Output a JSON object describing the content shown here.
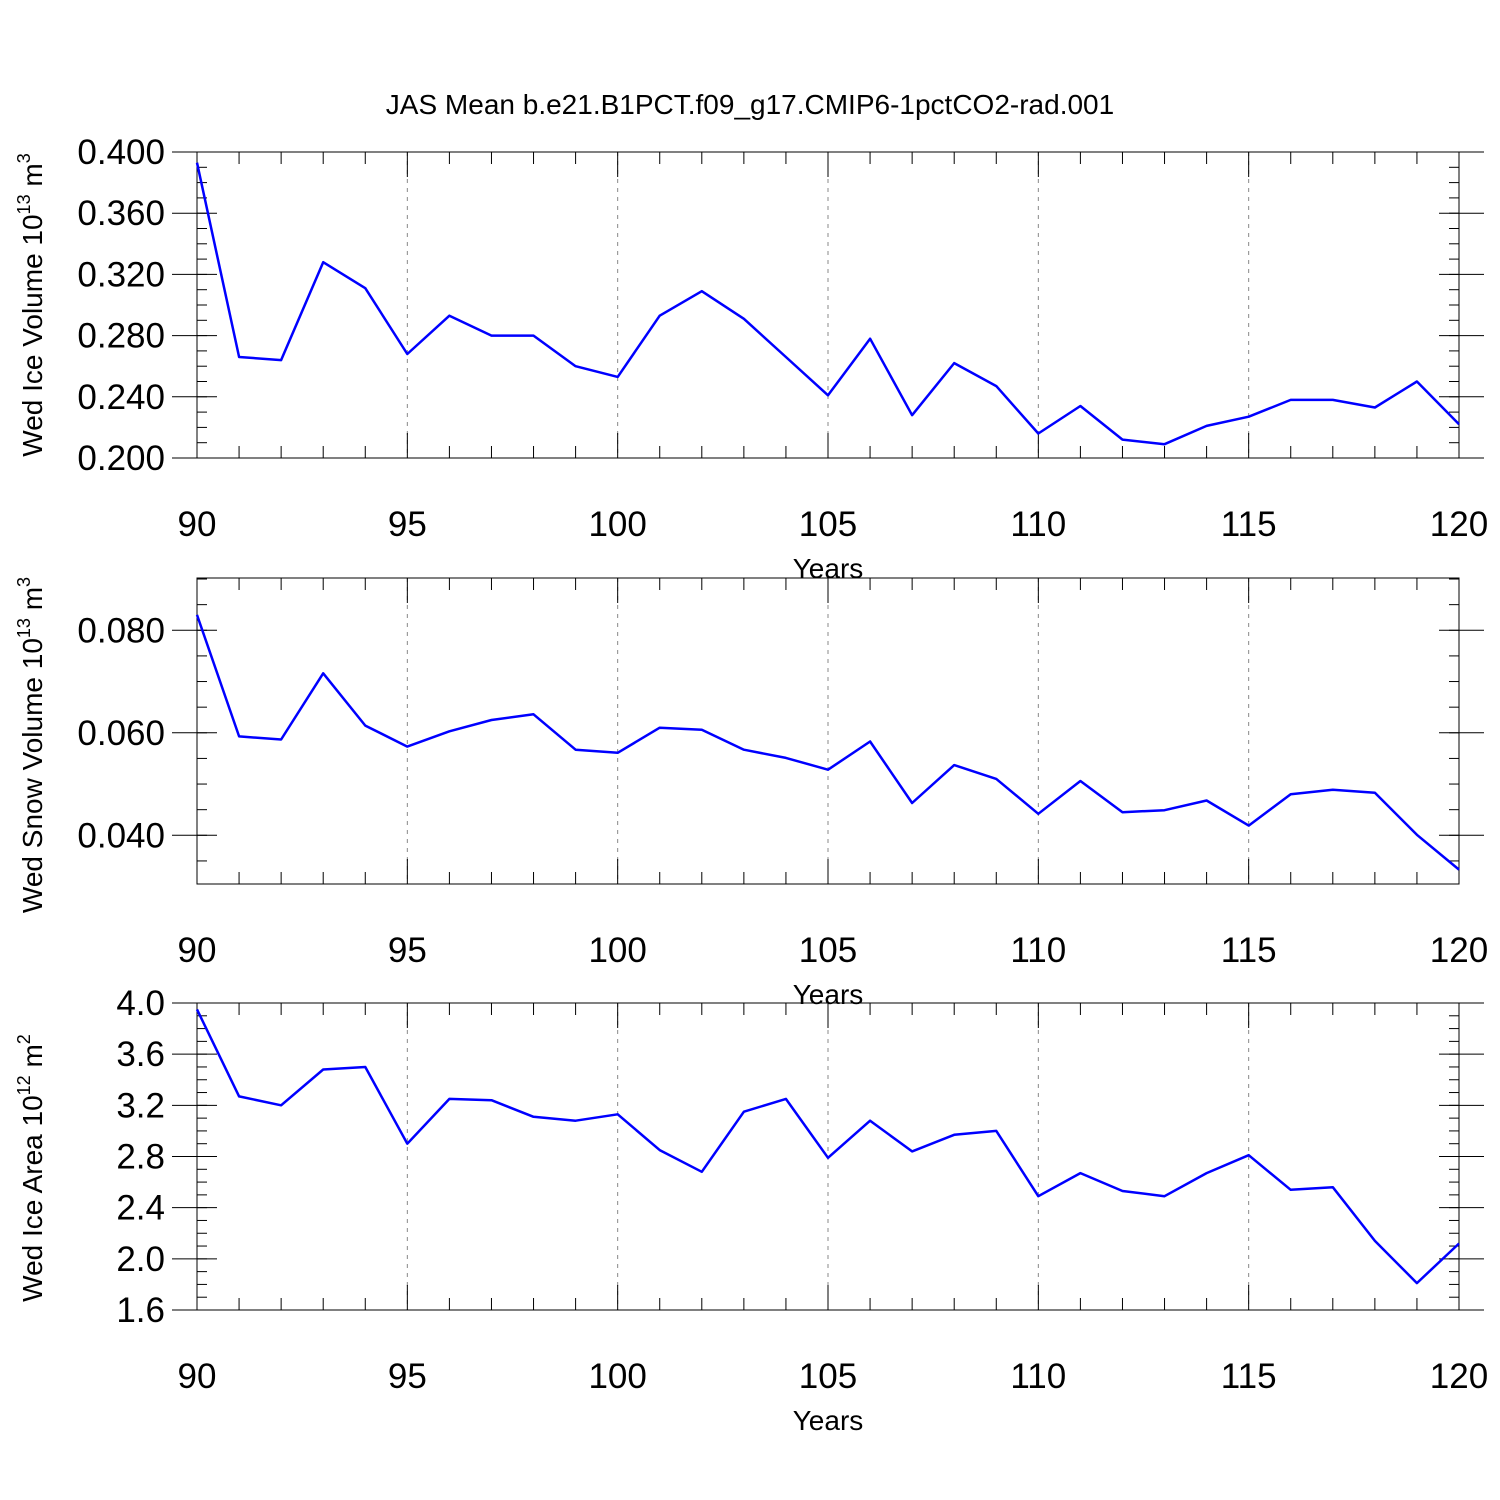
{
  "title": "JAS Mean b.e21.B1PCT.f09_g17.CMIP6-1pctCO2-rad.001",
  "chart_data": [
    {
      "type": "line",
      "ylabel": "Wed Ice Volume 10",
      "ylabel_sup": "13",
      "ylabel_unit": " m",
      "ylabel_unit_sup": "3",
      "xlabel": "Years",
      "xlim": [
        90,
        120
      ],
      "ylim": [
        0.2,
        0.4
      ],
      "x_major_ticks": [
        90,
        95,
        100,
        105,
        110,
        115,
        120
      ],
      "x_tick_labels": [
        "90",
        "95",
        "100",
        "105",
        "110",
        "115",
        "120"
      ],
      "y_major_ticks": [
        0.2,
        0.24,
        0.28,
        0.32,
        0.36,
        0.4
      ],
      "y_tick_labels": [
        "0.200",
        "0.240",
        "0.280",
        "0.320",
        "0.360",
        "0.400"
      ],
      "y_minor_step": 0.01,
      "grid": "vertical dashed at major x ticks",
      "series_color": "#0000ff",
      "x": [
        90,
        91,
        92,
        93,
        94,
        95,
        96,
        97,
        98,
        99,
        100,
        101,
        102,
        103,
        104,
        105,
        106,
        107,
        108,
        109,
        110,
        111,
        112,
        113,
        114,
        115,
        116,
        117,
        118,
        119,
        120
      ],
      "y": [
        0.393,
        0.266,
        0.264,
        0.328,
        0.311,
        0.268,
        0.293,
        0.28,
        0.28,
        0.26,
        0.253,
        0.293,
        0.309,
        0.291,
        0.266,
        0.241,
        0.278,
        0.228,
        0.262,
        0.247,
        0.216,
        0.234,
        0.212,
        0.209,
        0.221,
        0.227,
        0.238,
        0.238,
        0.233,
        0.25,
        0.222
      ]
    },
    {
      "type": "line",
      "ylabel": "Wed Snow Volume 10",
      "ylabel_sup": "13",
      "ylabel_unit": " m",
      "ylabel_unit_sup": "3",
      "xlabel": "Years",
      "xlim": [
        90,
        120
      ],
      "ylim": [
        0.0305,
        0.0902
      ],
      "x_major_ticks": [
        90,
        95,
        100,
        105,
        110,
        115,
        120
      ],
      "x_tick_labels": [
        "90",
        "95",
        "100",
        "105",
        "110",
        "115",
        "120"
      ],
      "y_major_ticks": [
        0.04,
        0.06,
        0.08
      ],
      "y_tick_labels": [
        "0.040",
        "0.060",
        "0.080"
      ],
      "y_minor_step": 0.005,
      "grid": "vertical dashed at major x ticks",
      "series_color": "#0000ff",
      "x": [
        90,
        91,
        92,
        93,
        94,
        95,
        96,
        97,
        98,
        99,
        100,
        101,
        102,
        103,
        104,
        105,
        106,
        107,
        108,
        109,
        110,
        111,
        112,
        113,
        114,
        115,
        116,
        117,
        118,
        119,
        120
      ],
      "y": [
        0.083,
        0.0593,
        0.0587,
        0.0716,
        0.0614,
        0.0573,
        0.0603,
        0.0625,
        0.0636,
        0.0567,
        0.0561,
        0.061,
        0.0606,
        0.0567,
        0.0551,
        0.0528,
        0.0583,
        0.0463,
        0.0537,
        0.051,
        0.0442,
        0.0506,
        0.0445,
        0.0449,
        0.0468,
        0.0419,
        0.048,
        0.0489,
        0.0483,
        0.0401,
        0.0333
      ]
    },
    {
      "type": "line",
      "ylabel": "Wed Ice Area 10",
      "ylabel_sup": "12",
      "ylabel_unit": " m",
      "ylabel_unit_sup": "2",
      "xlabel": "Years",
      "xlim": [
        90,
        120
      ],
      "ylim": [
        1.6,
        4.0
      ],
      "x_major_ticks": [
        90,
        95,
        100,
        105,
        110,
        115,
        120
      ],
      "x_tick_labels": [
        "90",
        "95",
        "100",
        "105",
        "110",
        "115",
        "120"
      ],
      "y_major_ticks": [
        1.6,
        2.0,
        2.4,
        2.8,
        3.2,
        3.6,
        4.0
      ],
      "y_tick_labels": [
        "1.6",
        "2.0",
        "2.4",
        "2.8",
        "3.2",
        "3.6",
        "4.0"
      ],
      "y_minor_step": 0.1,
      "grid": "vertical dashed at major x ticks",
      "series_color": "#0000ff",
      "x": [
        90,
        91,
        92,
        93,
        94,
        95,
        96,
        97,
        98,
        99,
        100,
        101,
        102,
        103,
        104,
        105,
        106,
        107,
        108,
        109,
        110,
        111,
        112,
        113,
        114,
        115,
        116,
        117,
        118,
        119,
        120
      ],
      "y": [
        3.95,
        3.27,
        3.2,
        3.48,
        3.5,
        2.9,
        3.25,
        3.24,
        3.11,
        3.08,
        3.13,
        2.85,
        2.68,
        3.15,
        3.25,
        2.79,
        3.08,
        2.84,
        2.97,
        3.0,
        2.49,
        2.67,
        2.53,
        2.49,
        2.67,
        2.81,
        2.54,
        2.56,
        2.14,
        1.81,
        2.12
      ]
    }
  ]
}
